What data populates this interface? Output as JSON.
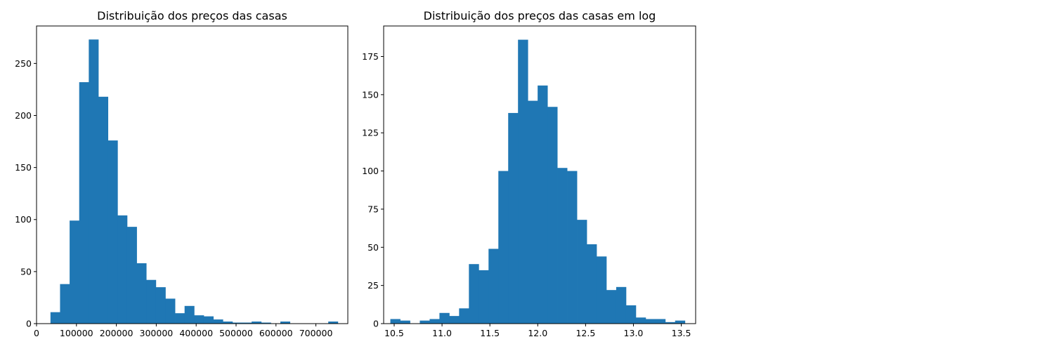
{
  "chart_data": [
    {
      "type": "bar",
      "title": "Distribuição dos preços das casas",
      "xlabel": "",
      "ylabel": "",
      "bar_color": "#1f77b4",
      "xlim": [
        0,
        780000
      ],
      "ylim": [
        0,
        286
      ],
      "xticks": [
        0,
        100000,
        200000,
        300000,
        400000,
        500000,
        600000,
        700000
      ],
      "xtick_labels": [
        "0",
        "100000",
        "200000",
        "300000",
        "400000",
        "500000",
        "600000",
        "700000"
      ],
      "yticks": [
        0,
        50,
        100,
        150,
        200,
        250
      ],
      "ytick_labels": [
        "0",
        "50",
        "100",
        "150",
        "200",
        "250"
      ],
      "bin_start": 34900,
      "bin_width": 24003,
      "values": [
        11,
        38,
        99,
        232,
        273,
        218,
        176,
        104,
        93,
        58,
        42,
        35,
        24,
        10,
        17,
        8,
        7,
        4,
        2,
        1,
        1,
        2,
        1,
        0,
        2,
        0,
        0,
        0,
        0,
        2
      ],
      "grid": false
    },
    {
      "type": "bar",
      "title": "Distribuição dos preços das casas em log",
      "xlabel": "",
      "ylabel": "",
      "bar_color": "#1f77b4",
      "xlim": [
        10.39,
        13.65
      ],
      "ylim": [
        0,
        195
      ],
      "xticks": [
        10.5,
        11.0,
        11.5,
        12.0,
        12.5,
        13.0,
        13.5
      ],
      "xtick_labels": [
        "10.5",
        "11.0",
        "11.5",
        "12.0",
        "12.5",
        "13.0",
        "13.5"
      ],
      "yticks": [
        0,
        25,
        50,
        75,
        100,
        125,
        150,
        175
      ],
      "ytick_labels": [
        "0",
        "25",
        "50",
        "75",
        "100",
        "125",
        "150",
        "175"
      ],
      "bin_start": 10.46,
      "bin_width": 0.1026,
      "values": [
        3,
        2,
        0,
        2,
        3,
        7,
        5,
        10,
        39,
        35,
        49,
        100,
        138,
        186,
        146,
        156,
        142,
        102,
        100,
        68,
        52,
        44,
        22,
        24,
        12,
        4,
        3,
        3,
        1,
        2
      ],
      "grid": false
    }
  ]
}
